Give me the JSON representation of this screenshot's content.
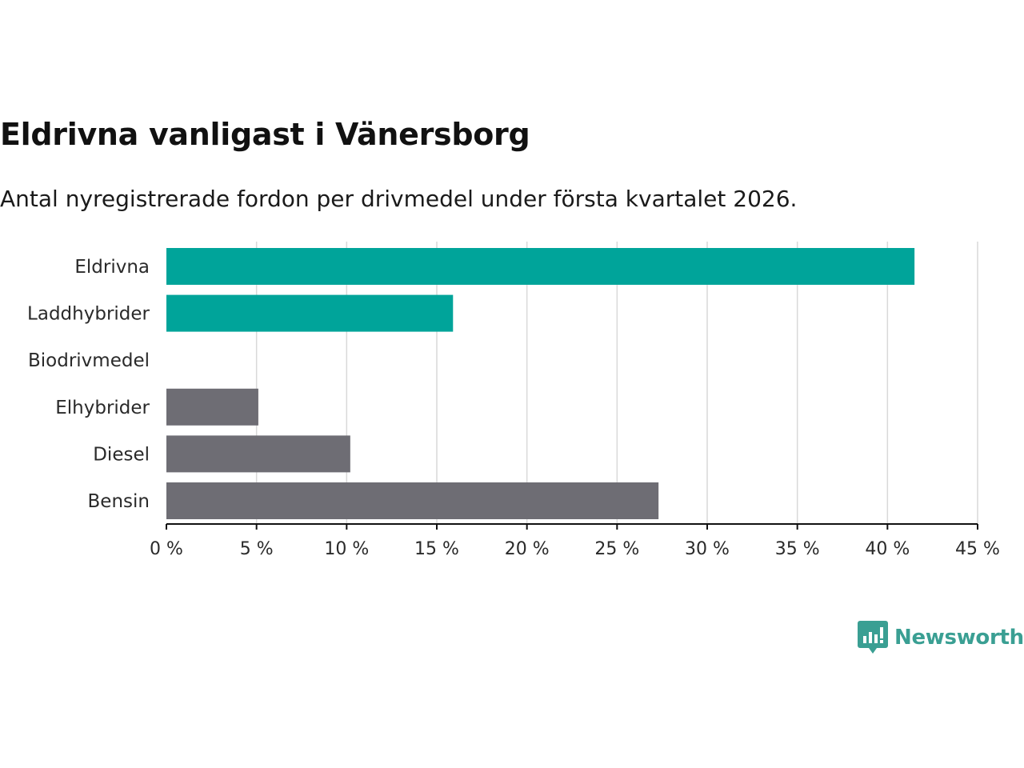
{
  "chart_data": {
    "type": "bar",
    "orientation": "horizontal",
    "title": "Eldrivna vanligast i Vänersborg",
    "subtitle": "Antal nyregistrerade fordon per drivmedel under första kvartalet 2026.",
    "categories": [
      "Eldrivna",
      "Laddhybrider",
      "Biodrivmedel",
      "Elhybrider",
      "Diesel",
      "Bensin"
    ],
    "values": [
      41.5,
      15.9,
      0,
      5.1,
      10.2,
      27.3
    ],
    "colors": [
      "#00a49a",
      "#00a49a",
      "#00a49a",
      "#6e6d74",
      "#6e6d74",
      "#6e6d74"
    ],
    "xlim": [
      0,
      45
    ],
    "xticks": [
      0,
      5,
      10,
      15,
      20,
      25,
      30,
      35,
      40,
      45
    ],
    "tick_suffix": " %",
    "xlabel": "",
    "ylabel": "",
    "grid": true
  },
  "brand": {
    "name": "Newsworthy",
    "color": "#3a9f93",
    "icon": "newsworthy-logo-icon"
  }
}
